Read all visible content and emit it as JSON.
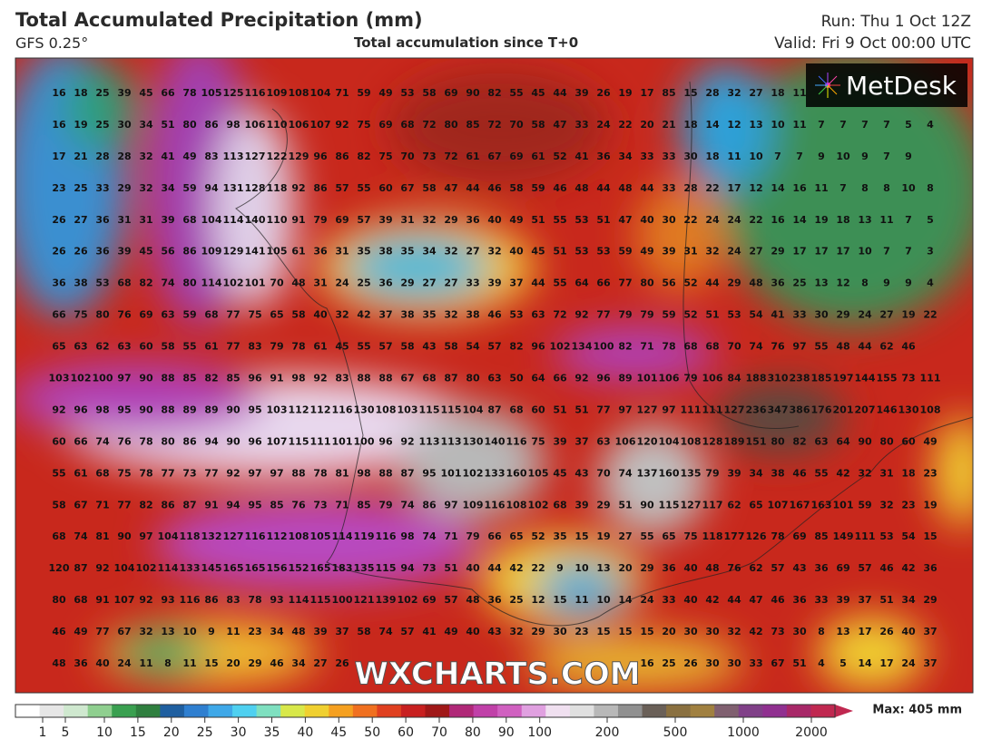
{
  "header": {
    "title": "Total Accumulated Precipitation (mm)",
    "model": "GFS 0.25°",
    "subtitle": "Total accumulation since T+0",
    "run": "Run: Thu 1 Oct 12Z",
    "valid": "Valid: Fri 9 Oct 00:00 UTC"
  },
  "logo": "MetDesk",
  "watermark": "WXCHARTS.COM",
  "grid": {
    "rows": [
      [
        16,
        18,
        25,
        39,
        45,
        66,
        78,
        105,
        125,
        116,
        109,
        108,
        104,
        71,
        59,
        49,
        53,
        58,
        69,
        90,
        82,
        55,
        45,
        44,
        39,
        26,
        19,
        17,
        85,
        15,
        28,
        32,
        27,
        18,
        11,
        null,
        null,
        null,
        null,
        null,
        null
      ],
      [
        16,
        19,
        25,
        30,
        34,
        51,
        80,
        86,
        98,
        106,
        110,
        106,
        107,
        92,
        75,
        69,
        68,
        72,
        80,
        85,
        72,
        70,
        58,
        47,
        33,
        24,
        22,
        20,
        21,
        18,
        14,
        12,
        13,
        10,
        11,
        7,
        7,
        7,
        7,
        5,
        4
      ],
      [
        17,
        21,
        28,
        28,
        32,
        41,
        49,
        83,
        113,
        127,
        122,
        129,
        96,
        86,
        82,
        75,
        70,
        73,
        72,
        61,
        67,
        69,
        61,
        52,
        41,
        36,
        34,
        33,
        33,
        30,
        18,
        11,
        10,
        7,
        7,
        9,
        10,
        9,
        7,
        9
      ],
      [
        23,
        25,
        33,
        29,
        32,
        34,
        59,
        94,
        131,
        128,
        118,
        92,
        86,
        57,
        55,
        60,
        67,
        58,
        47,
        44,
        46,
        58,
        59,
        46,
        48,
        44,
        48,
        44,
        33,
        28,
        22,
        17,
        12,
        14,
        16,
        11,
        7,
        8,
        8,
        10,
        8
      ],
      [
        26,
        27,
        36,
        31,
        31,
        39,
        68,
        104,
        114,
        140,
        110,
        91,
        79,
        69,
        57,
        39,
        31,
        32,
        29,
        36,
        40,
        49,
        51,
        55,
        53,
        51,
        47,
        40,
        30,
        22,
        24,
        24,
        22,
        16,
        14,
        19,
        18,
        13,
        11,
        7,
        5
      ],
      [
        26,
        26,
        36,
        39,
        45,
        56,
        86,
        109,
        129,
        141,
        105,
        61,
        36,
        31,
        35,
        38,
        35,
        34,
        32,
        27,
        32,
        40,
        45,
        51,
        53,
        53,
        59,
        49,
        39,
        31,
        32,
        24,
        27,
        29,
        17,
        17,
        17,
        10,
        7,
        7,
        3
      ],
      [
        36,
        38,
        53,
        68,
        82,
        74,
        80,
        114,
        102,
        101,
        70,
        48,
        31,
        24,
        25,
        36,
        29,
        27,
        27,
        33,
        39,
        37,
        44,
        55,
        64,
        66,
        77,
        80,
        56,
        52,
        44,
        29,
        48,
        36,
        25,
        13,
        12,
        8,
        9,
        9,
        4
      ],
      [
        66,
        75,
        80,
        76,
        69,
        63,
        59,
        68,
        77,
        75,
        65,
        58,
        40,
        32,
        42,
        37,
        38,
        35,
        32,
        38,
        46,
        53,
        63,
        72,
        92,
        77,
        79,
        79,
        59,
        52,
        51,
        53,
        54,
        41,
        33,
        30,
        29,
        24,
        27,
        19,
        22
      ],
      [
        65,
        63,
        62,
        63,
        60,
        58,
        55,
        61,
        77,
        83,
        79,
        78,
        61,
        45,
        55,
        57,
        58,
        43,
        58,
        54,
        57,
        82,
        96,
        102,
        134,
        100,
        82,
        71,
        78,
        68,
        68,
        70,
        74,
        76,
        97,
        55,
        48,
        44,
        62,
        46
      ],
      [
        103,
        102,
        100,
        97,
        90,
        88,
        85,
        82,
        85,
        96,
        91,
        98,
        92,
        83,
        88,
        88,
        67,
        68,
        87,
        80,
        63,
        50,
        64,
        66,
        92,
        96,
        89,
        101,
        106,
        79,
        106,
        84,
        188,
        310,
        238,
        185,
        197,
        144,
        155,
        73,
        111
      ],
      [
        92,
        96,
        98,
        95,
        90,
        88,
        89,
        89,
        90,
        95,
        103,
        112,
        112,
        116,
        130,
        108,
        103,
        115,
        115,
        104,
        87,
        68,
        60,
        51,
        51,
        77,
        97,
        127,
        97,
        111,
        111,
        127,
        236,
        347,
        386,
        176,
        201,
        207,
        146,
        130,
        108
      ],
      [
        60,
        66,
        74,
        76,
        78,
        80,
        86,
        94,
        90,
        96,
        107,
        115,
        111,
        101,
        100,
        96,
        92,
        113,
        113,
        130,
        140,
        116,
        75,
        39,
        37,
        63,
        106,
        120,
        104,
        108,
        128,
        189,
        151,
        80,
        82,
        63,
        64,
        90,
        80,
        60,
        49
      ],
      [
        55,
        61,
        68,
        75,
        78,
        77,
        73,
        77,
        92,
        97,
        97,
        88,
        78,
        81,
        98,
        88,
        87,
        95,
        101,
        102,
        133,
        160,
        105,
        45,
        43,
        70,
        74,
        137,
        160,
        135,
        79,
        39,
        34,
        38,
        46,
        55,
        42,
        32,
        31,
        18,
        23
      ],
      [
        58,
        67,
        71,
        77,
        82,
        86,
        87,
        91,
        94,
        95,
        85,
        76,
        73,
        71,
        85,
        79,
        74,
        86,
        97,
        109,
        116,
        108,
        102,
        68,
        39,
        29,
        51,
        90,
        115,
        127,
        117,
        62,
        65,
        107,
        167,
        163,
        101,
        59,
        32,
        23,
        19
      ],
      [
        68,
        74,
        81,
        90,
        97,
        104,
        118,
        132,
        127,
        116,
        112,
        108,
        105,
        114,
        119,
        116,
        98,
        74,
        71,
        79,
        66,
        65,
        52,
        35,
        15,
        19,
        27,
        55,
        65,
        75,
        118,
        177,
        126,
        78,
        69,
        85,
        149,
        111,
        53,
        54,
        15
      ],
      [
        120,
        87,
        92,
        104,
        102,
        114,
        133,
        145,
        165,
        165,
        156,
        152,
        165,
        183,
        135,
        115,
        94,
        73,
        51,
        40,
        44,
        42,
        22,
        9,
        10,
        13,
        20,
        29,
        36,
        40,
        48,
        76,
        62,
        57,
        43,
        36,
        69,
        57,
        46,
        42,
        36
      ],
      [
        80,
        68,
        91,
        107,
        92,
        93,
        116,
        86,
        83,
        78,
        93,
        114,
        115,
        100,
        121,
        139,
        102,
        69,
        57,
        48,
        36,
        25,
        12,
        15,
        11,
        10,
        14,
        24,
        33,
        40,
        42,
        44,
        47,
        46,
        36,
        33,
        39,
        37,
        51,
        34,
        29
      ],
      [
        46,
        49,
        77,
        67,
        32,
        13,
        10,
        9,
        11,
        23,
        34,
        48,
        39,
        37,
        58,
        74,
        57,
        41,
        49,
        40,
        43,
        32,
        29,
        30,
        23,
        15,
        15,
        15,
        20,
        30,
        30,
        32,
        42,
        73,
        30,
        8,
        13,
        17,
        26,
        40,
        37
      ],
      [
        48,
        36,
        40,
        24,
        11,
        8,
        11,
        15,
        20,
        29,
        46,
        34,
        27,
        26,
        null,
        null,
        null,
        null,
        null,
        null,
        null,
        null,
        null,
        null,
        null,
        null,
        null,
        16,
        25,
        26,
        30,
        30,
        33,
        67,
        51,
        4,
        5,
        14,
        17,
        24,
        37
      ]
    ]
  },
  "colorbar": {
    "ticks": [
      1,
      5,
      10,
      15,
      20,
      25,
      30,
      35,
      40,
      45,
      50,
      60,
      70,
      80,
      90,
      100,
      200,
      500,
      1000,
      2000
    ],
    "max_label": "Max: 405 mm"
  }
}
